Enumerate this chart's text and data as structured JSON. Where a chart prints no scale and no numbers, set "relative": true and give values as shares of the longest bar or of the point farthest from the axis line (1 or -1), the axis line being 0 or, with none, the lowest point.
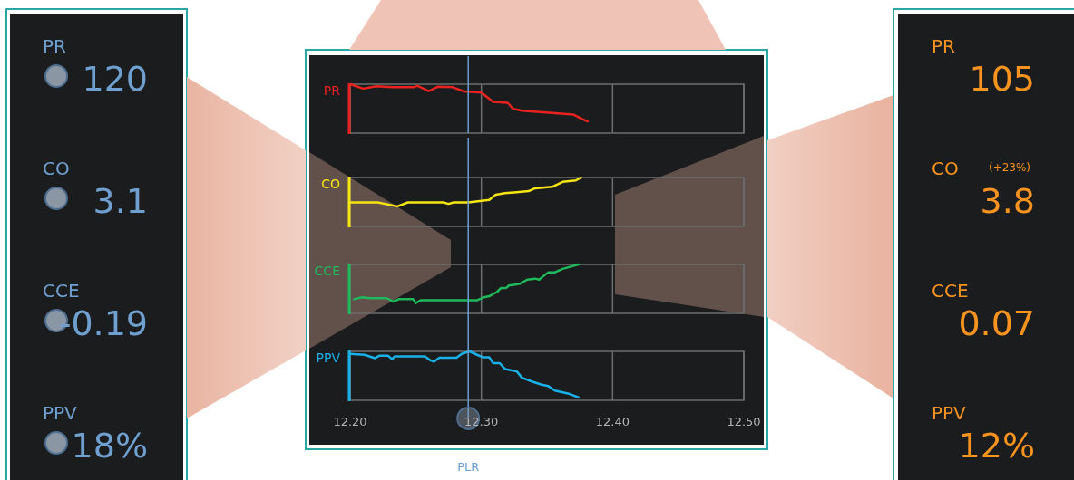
{
  "chart_data": [
    {
      "type": "other",
      "title": "PR",
      "annotations": [
        "120"
      ]
    },
    {
      "type": "other",
      "title": "CO",
      "annotations": [
        "3.1"
      ]
    },
    {
      "type": "other",
      "title": "CCE",
      "annotations": [
        "-0.19"
      ]
    },
    {
      "type": "other",
      "title": "PPV",
      "annotations": [
        "18%"
      ]
    },
    {
      "type": "line",
      "relative": true,
      "grid": "x",
      "tick_labels": false,
      "xlim": [
        12.2,
        12.5
      ],
      "xticks": [
        12.2,
        12.3,
        12.4,
        12.5
      ],
      "ref_lines": [
        {
          "axis": "x",
          "value": 12.29,
          "color": "#6a9fd4"
        }
      ],
      "series": [
        {
          "name": "PR",
          "color": "#e8231f",
          "x": [
            12.2,
            12.21,
            12.22,
            12.232,
            12.249,
            12.251,
            12.26,
            12.267,
            12.278,
            12.287,
            12.3,
            12.309,
            12.32,
            12.324,
            12.331,
            12.37,
            12.376,
            12.381
          ],
          "values": [
            1,
            0.91,
            0.96,
            0.94,
            0.94,
            0.97,
            0.86,
            0.95,
            0.94,
            0.85,
            0.83,
            0.64,
            0.62,
            0.5,
            0.46,
            0.38,
            0.3,
            0.24
          ]
        }
      ]
    },
    {
      "type": "line",
      "relative": true,
      "grid": "x",
      "tick_labels": false,
      "xlim": [
        12.2,
        12.5
      ],
      "xticks": [
        12.2,
        12.3,
        12.4,
        12.5
      ],
      "ref_lines": [
        {
          "axis": "x",
          "value": 12.29,
          "color": "#6a9fd4"
        }
      ],
      "series": [
        {
          "name": "CO",
          "color": "#f5e612",
          "x": [
            12.2,
            12.221,
            12.236,
            12.244,
            12.271,
            12.275,
            12.279,
            12.29,
            12.306,
            12.311,
            12.318,
            12.327,
            12.336,
            12.341,
            12.354,
            12.362,
            12.372,
            12.376
          ],
          "values": [
            0.49,
            0.49,
            0.41,
            0.49,
            0.49,
            0.46,
            0.49,
            0.49,
            0.54,
            0.65,
            0.68,
            0.7,
            0.72,
            0.78,
            0.81,
            0.91,
            0.94,
            1
          ]
        }
      ]
    },
    {
      "type": "line",
      "relative": true,
      "grid": "x",
      "tick_labels": false,
      "xlim": [
        12.2,
        12.5
      ],
      "xticks": [
        12.2,
        12.3,
        12.4,
        12.5
      ],
      "ref_lines": [
        {
          "axis": "x",
          "value": 12.29,
          "color": "#6a9fd4"
        }
      ],
      "series": [
        {
          "name": "CCE",
          "color": "#1fb85a",
          "x": [
            12.203,
            12.209,
            12.215,
            12.228,
            12.233,
            12.237,
            12.248,
            12.25,
            12.254,
            12.297,
            12.302,
            12.306,
            12.312,
            12.315,
            12.319,
            12.321,
            12.329,
            12.335,
            12.341,
            12.344,
            12.351,
            12.356,
            12.362,
            12.374
          ],
          "values": [
            0.29,
            0.33,
            0.31,
            0.31,
            0.24,
            0.29,
            0.29,
            0.21,
            0.27,
            0.27,
            0.33,
            0.35,
            0.44,
            0.52,
            0.52,
            0.57,
            0.6,
            0.69,
            0.71,
            0.69,
            0.84,
            0.84,
            0.91,
            1
          ]
        }
      ]
    },
    {
      "type": "line",
      "relative": true,
      "grid": "x",
      "xlim": [
        12.2,
        12.5
      ],
      "xticks": [
        {
          "value": 12.2,
          "label": "12.20"
        },
        {
          "value": 12.3,
          "label": "12.30"
        },
        {
          "value": 12.4,
          "label": "12.40"
        },
        {
          "value": 12.5,
          "label": "12.50"
        }
      ],
      "ref_lines": [
        {
          "axis": "x",
          "value": 12.29,
          "label": "PLR",
          "color": "#6a9fd4"
        }
      ],
      "series": [
        {
          "name": "PPV",
          "color": "#1ab0e8",
          "x": [
            12.2,
            12.211,
            12.219,
            12.222,
            12.229,
            12.232,
            12.234,
            12.257,
            12.261,
            12.264,
            12.268,
            12.281,
            12.285,
            12.291,
            12.296,
            12.301,
            12.306,
            12.309,
            12.314,
            12.318,
            12.327,
            12.331,
            12.339,
            12.346,
            12.351,
            12.356,
            12.366,
            12.374
          ],
          "values": [
            0.95,
            0.93,
            0.86,
            0.91,
            0.91,
            0.84,
            0.9,
            0.9,
            0.82,
            0.79,
            0.87,
            0.87,
            0.95,
            1,
            0.94,
            0.88,
            0.88,
            0.76,
            0.76,
            0.64,
            0.59,
            0.46,
            0.38,
            0.32,
            0.29,
            0.2,
            0.14,
            0.06
          ]
        }
      ]
    },
    {
      "type": "other",
      "title": "PR",
      "annotations": [
        "105"
      ]
    },
    {
      "type": "other",
      "title": "CO",
      "annotations": [
        "(+23%)",
        "3.8"
      ]
    },
    {
      "type": "other",
      "title": "CCE",
      "annotations": [
        "0.07"
      ]
    },
    {
      "type": "other",
      "title": "PPV",
      "annotations": [
        "12%"
      ]
    }
  ]
}
